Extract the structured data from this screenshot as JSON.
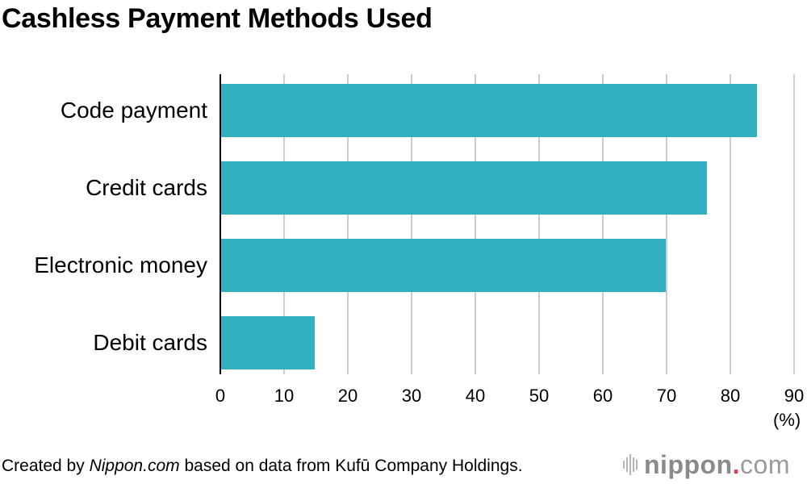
{
  "title": "Cashless Payment Methods Used",
  "footer": {
    "prefix": "Created by ",
    "source_site": "Nippon.com",
    "suffix": " based on data from Kufū Company Holdings."
  },
  "logo": {
    "name": "nippon",
    "dot": ".",
    "tld": "com",
    "accent_color": "#e63946"
  },
  "chart_data": {
    "type": "bar",
    "orientation": "horizontal",
    "title": "Cashless Payment Methods Used",
    "categories": [
      "Code payment",
      "Credit cards",
      "Electronic money",
      "Debit cards"
    ],
    "values": [
      84.2,
      76.3,
      69.9,
      14.8
    ],
    "xlabel": "(%)",
    "ylabel": "",
    "xlim": [
      0,
      90
    ],
    "xticks": [
      0,
      10,
      20,
      30,
      40,
      50,
      60,
      70,
      80,
      90
    ],
    "grid": true,
    "legend": null,
    "bar_color": "#33b0bf",
    "source": "Created by Nippon.com based on data from Kufū Company Holdings."
  }
}
